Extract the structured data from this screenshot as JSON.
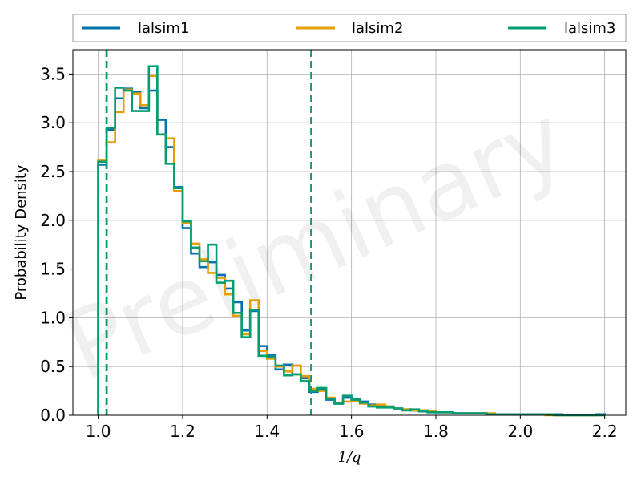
{
  "chart_data": {
    "type": "histogram",
    "xlabel": "1/q",
    "ylabel": "Probability Density",
    "xlim": [
      0.94,
      2.25
    ],
    "ylim": [
      0.0,
      3.75
    ],
    "xticks": [
      "1.0",
      "1.2",
      "1.4",
      "1.6",
      "1.8",
      "2.0",
      "2.2"
    ],
    "yticks": [
      "0.0",
      "0.5",
      "1.0",
      "1.5",
      "2.0",
      "2.5",
      "3.0",
      "3.5"
    ],
    "grid": true,
    "legend_position": "top, outside, spanning width",
    "watermark": "Preliminary",
    "series": [
      {
        "name": "lalsim1",
        "color": "#0072B2",
        "bin_start": 1.0,
        "bin_width": 0.02,
        "values": [
          2.57,
          2.93,
          3.25,
          3.35,
          3.32,
          3.15,
          3.33,
          3.03,
          2.75,
          2.34,
          1.92,
          1.66,
          1.52,
          1.57,
          1.44,
          1.3,
          1.16,
          0.87,
          1.07,
          0.71,
          0.62,
          0.47,
          0.52,
          0.42,
          0.38,
          0.24,
          0.27,
          0.16,
          0.12,
          0.18,
          0.17,
          0.14,
          0.11,
          0.1,
          0.09,
          0.07,
          0.06,
          0.05,
          0.05,
          0.04,
          0.03,
          0.03,
          0.02,
          0.02,
          0.02,
          0.02,
          0.01,
          0.01,
          0.01,
          0.01,
          0.01,
          0.01,
          0.01,
          0.01,
          0.01,
          0.0,
          0.0,
          0.0,
          0.0,
          0.01
        ],
        "median_line": 1.02,
        "upper_line": 1.505
      },
      {
        "name": "lalsim2",
        "color": "#E69F00",
        "bin_start": 1.0,
        "bin_width": 0.02,
        "values": [
          2.62,
          2.8,
          3.11,
          3.34,
          3.3,
          3.18,
          3.48,
          2.88,
          2.84,
          2.3,
          1.97,
          1.76,
          1.6,
          1.46,
          1.41,
          1.24,
          1.02,
          0.83,
          1.18,
          0.66,
          0.58,
          0.5,
          0.45,
          0.51,
          0.4,
          0.27,
          0.25,
          0.18,
          0.13,
          0.14,
          0.15,
          0.12,
          0.1,
          0.11,
          0.09,
          0.07,
          0.06,
          0.05,
          0.05,
          0.04,
          0.03,
          0.03,
          0.02,
          0.02,
          0.02,
          0.02,
          0.02,
          0.01,
          0.01,
          0.01,
          0.01,
          0.01,
          0.01,
          0.0,
          0.0,
          0.0,
          0.0,
          0.0,
          0.0,
          0.0
        ],
        "median_line": 1.02,
        "upper_line": 1.505
      },
      {
        "name": "lalsim3",
        "color": "#009E73",
        "bin_start": 1.0,
        "bin_width": 0.02,
        "values": [
          2.6,
          2.95,
          3.36,
          3.33,
          3.12,
          3.12,
          3.58,
          2.88,
          2.58,
          2.33,
          1.99,
          1.72,
          1.58,
          1.75,
          1.36,
          1.38,
          1.05,
          0.8,
          1.08,
          0.61,
          0.6,
          0.51,
          0.41,
          0.42,
          0.35,
          0.25,
          0.28,
          0.17,
          0.12,
          0.2,
          0.16,
          0.13,
          0.09,
          0.08,
          0.08,
          0.07,
          0.05,
          0.06,
          0.04,
          0.03,
          0.03,
          0.03,
          0.02,
          0.02,
          0.02,
          0.02,
          0.01,
          0.01,
          0.01,
          0.01,
          0.01,
          0.01,
          0.01,
          0.01,
          0.0,
          0.0,
          0.0,
          0.0,
          0.0,
          0.0
        ],
        "median_line": 1.02,
        "upper_line": 1.505
      }
    ]
  }
}
